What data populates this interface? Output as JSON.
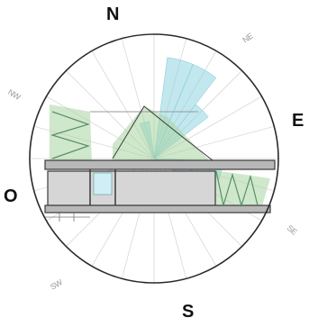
{
  "compass": {
    "north": "N",
    "east": "E",
    "south": "S",
    "west": "O",
    "northeast": "NE",
    "southeast": "SE",
    "southwest": "SW",
    "northwest": "NW"
  },
  "wind_rose": {
    "color": "#8fd3e0",
    "sectors_deg": [
      {
        "dir": 15,
        "radius_fraction": 0.82
      },
      {
        "dir": 30,
        "radius_fraction": 0.82
      },
      {
        "dir": 45,
        "radius_fraction": 0.55
      },
      {
        "dir": 100,
        "radius_fraction": 0.55
      },
      {
        "dir": 115,
        "radius_fraction": 0.45
      },
      {
        "dir": 345,
        "radius_fraction": 0.3
      }
    ]
  },
  "colors": {
    "ring": "#2a2a2a",
    "spokes": "#d8d8d8",
    "building_fill": "#d6d6d6",
    "building_outline": "#3a3a3a",
    "vegetation": "#a8d5a2"
  }
}
